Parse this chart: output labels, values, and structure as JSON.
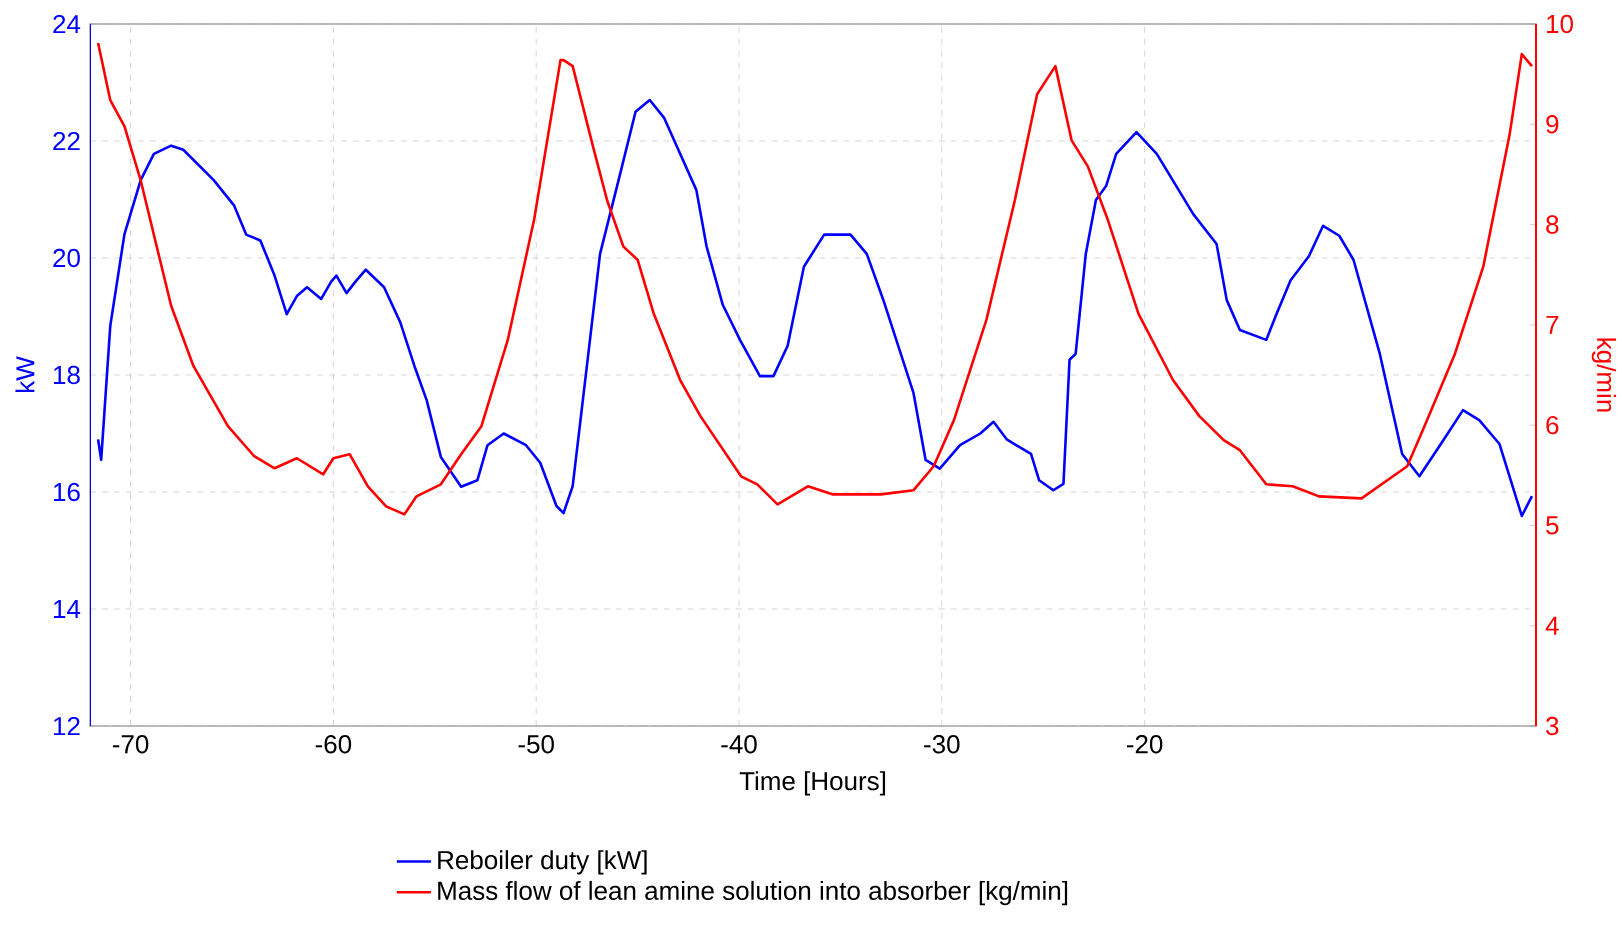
{
  "chart_data": {
    "type": "line",
    "xlabel": "Time [Hours]",
    "ylabel": "kW",
    "y2label": "kg/min",
    "xlim": [
      -72,
      -0.7
    ],
    "xticks": [
      -70,
      -60,
      -50,
      -40,
      -30,
      -20
    ],
    "ylim": [
      12,
      24
    ],
    "yticks": [
      12,
      14,
      16,
      18,
      20,
      22,
      24
    ],
    "y2lim": [
      3,
      10
    ],
    "y2ticks": [
      3,
      4,
      5,
      6,
      7,
      8,
      9,
      10
    ],
    "grid": true,
    "legend": "bottom",
    "series": [
      {
        "name": "Reboiler duty [kW]",
        "color": "#0000ff",
        "x": [
          -71.6,
          -71.45,
          -71.0,
          -70.3,
          -69.5,
          -68.85,
          -68.0,
          -67.4,
          -65.9,
          -64.9,
          -64.3,
          -63.6,
          -62.9,
          -62.3,
          -61.8,
          -61.3,
          -60.6,
          -60.1,
          -59.85,
          -59.35,
          -58.9,
          -58.4,
          -57.5,
          -56.7,
          -56.0,
          -55.4,
          -54.7,
          -53.7,
          -52.9,
          -52.4,
          -51.6,
          -50.5,
          -49.8,
          -49.0,
          -48.65,
          -48.2,
          -47.5,
          -46.85,
          -45.85,
          -45.1,
          -44.4,
          -43.7,
          -42.1,
          -41.6,
          -40.8,
          -39.95,
          -38.97,
          -38.3,
          -37.6,
          -36.8,
          -35.8,
          -34.5,
          -33.7,
          -32.9,
          -31.4,
          -30.8,
          -30.1,
          -29.1,
          -28.1,
          -27.45,
          -26.8,
          -25.6,
          -25.2,
          -24.5,
          -24.0,
          -23.7,
          -23.4,
          -22.9,
          -22.4,
          -21.9,
          -21.4,
          -20.4,
          -19.4,
          -17.6,
          -16.45,
          -15.95,
          -15.3,
          -14.0,
          -13.5,
          -12.8,
          -11.9,
          -11.2,
          -10.4,
          -9.7,
          -8.4,
          -7.3,
          -6.45,
          -5.45,
          -4.3,
          -3.5,
          -2.5,
          -1.4,
          -0.9
        ],
        "values": [
          16.9,
          16.55,
          18.84,
          20.41,
          21.33,
          21.78,
          21.92,
          21.85,
          21.33,
          20.9,
          20.4,
          20.3,
          19.7,
          19.04,
          19.35,
          19.5,
          19.3,
          19.6,
          19.7,
          19.4,
          19.6,
          19.8,
          19.5,
          18.9,
          18.15,
          17.57,
          16.6,
          16.09,
          16.2,
          16.8,
          17.0,
          16.8,
          16.5,
          15.76,
          15.64,
          16.1,
          18.15,
          20.07,
          21.45,
          22.5,
          22.7,
          22.4,
          21.16,
          20.2,
          19.2,
          18.6,
          17.98,
          17.98,
          18.5,
          19.85,
          20.4,
          20.4,
          20.07,
          19.3,
          17.7,
          16.55,
          16.4,
          16.8,
          17.0,
          17.2,
          16.9,
          16.65,
          16.2,
          16.03,
          16.14,
          18.26,
          18.36,
          20.07,
          20.99,
          21.23,
          21.78,
          22.15,
          21.78,
          20.75,
          20.24,
          19.28,
          18.77,
          18.6,
          19.04,
          19.62,
          20.03,
          20.55,
          20.38,
          19.97,
          18.36,
          16.65,
          16.27,
          16.79,
          17.4,
          17.23,
          16.82,
          15.59,
          15.93
        ]
      },
      {
        "name": "Mass flow of lean amine solution into absorber [kg/min]",
        "color": "#ff0000",
        "axis": "y2",
        "x": [
          -71.6,
          -71.0,
          -70.3,
          -69.5,
          -68.0,
          -66.9,
          -65.2,
          -63.9,
          -62.9,
          -61.8,
          -60.5,
          -60.0,
          -59.2,
          -58.3,
          -57.4,
          -56.5,
          -55.9,
          -54.7,
          -53.7,
          -52.7,
          -51.4,
          -50.1,
          -48.8,
          -48.65,
          -48.2,
          -47.2,
          -46.5,
          -45.7,
          -45.0,
          -44.2,
          -42.9,
          -41.9,
          -40.9,
          -39.9,
          -39.1,
          -38.1,
          -36.6,
          -35.4,
          -33.0,
          -31.4,
          -30.4,
          -29.4,
          -27.8,
          -26.4,
          -25.3,
          -24.4,
          -23.6,
          -22.8,
          -21.8,
          -20.3,
          -18.6,
          -17.3,
          -16.1,
          -15.3,
          -14.0,
          -12.7,
          -11.4,
          -9.3,
          -7.05,
          -6.2,
          -4.7,
          -3.3,
          -2.0,
          -1.4,
          -0.9
        ],
        "values": [
          9.81,
          9.24,
          8.98,
          8.44,
          7.19,
          6.59,
          5.99,
          5.69,
          5.57,
          5.67,
          5.51,
          5.67,
          5.71,
          5.39,
          5.19,
          5.11,
          5.29,
          5.41,
          5.71,
          5.99,
          6.85,
          8.05,
          9.64,
          9.64,
          9.58,
          8.78,
          8.24,
          7.78,
          7.65,
          7.11,
          6.45,
          6.09,
          5.79,
          5.49,
          5.41,
          5.21,
          5.39,
          5.31,
          5.31,
          5.35,
          5.59,
          6.05,
          7.05,
          8.24,
          9.3,
          9.58,
          8.84,
          8.58,
          8.04,
          7.11,
          6.45,
          6.09,
          5.85,
          5.75,
          5.41,
          5.39,
          5.29,
          5.27,
          5.59,
          5.99,
          6.71,
          7.58,
          8.9,
          9.7,
          9.58
        ]
      }
    ]
  }
}
